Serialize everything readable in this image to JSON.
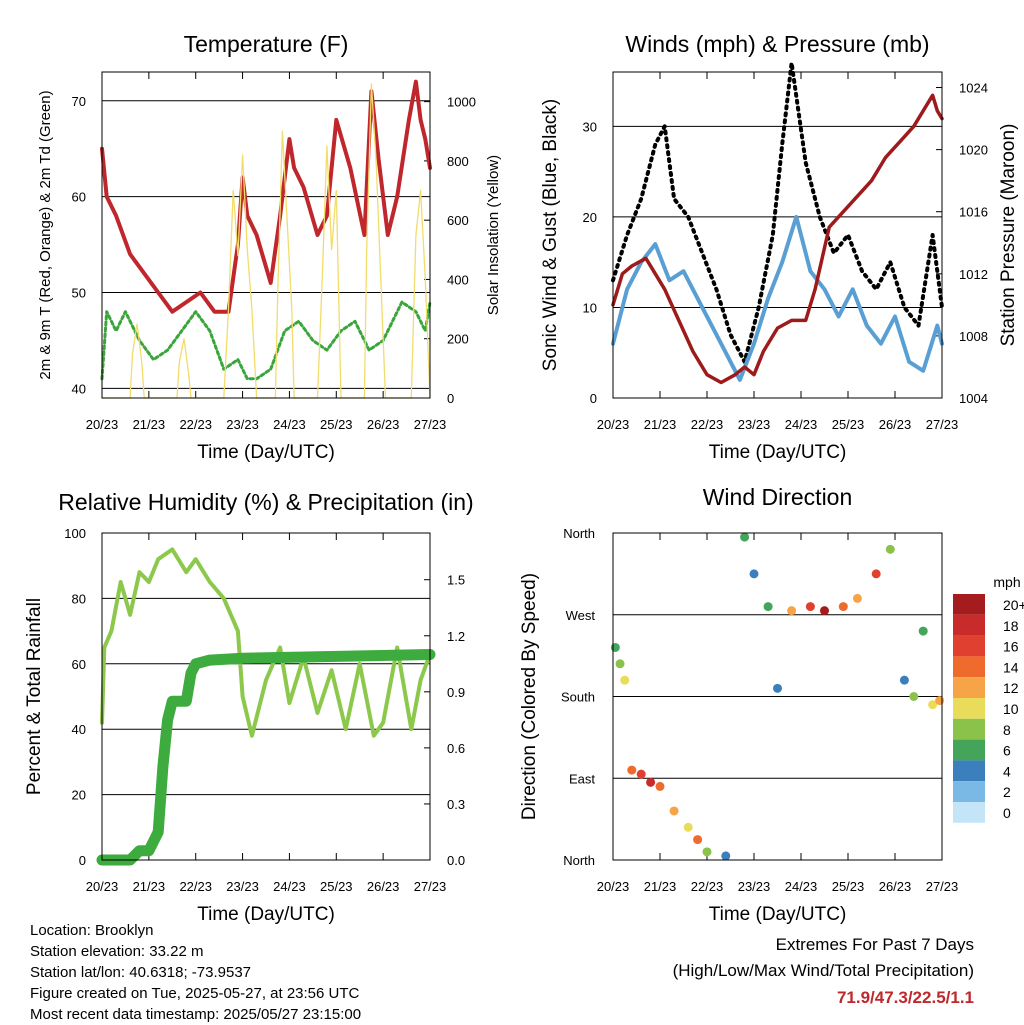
{
  "x_ticks": [
    "20/23",
    "21/23",
    "22/23",
    "23/23",
    "24/23",
    "25/23",
    "26/23",
    "27/23"
  ],
  "xlabel": "Time (Day/UTC)",
  "colors": {
    "temperature": "#c0272d",
    "dewpoint": "#3aa53a",
    "solar": "#f2dc6b",
    "wind": "#5a9fd4",
    "gust": "#000000",
    "pressure": "#9e1b1b",
    "humidity": "#8cc84b",
    "rain": "#3dab3d",
    "grid": "#000000"
  },
  "chart_data": [
    {
      "type": "line",
      "title": "Temperature (F)",
      "ylabel": "2m & 9m T (Red, Orange) & 2m Td (Green)",
      "y2label": "Solar Insolation (Yellow)",
      "ylim": [
        39,
        73
      ],
      "y_ticks": [
        40,
        50,
        60,
        70
      ],
      "y2lim": [
        0,
        1100
      ],
      "y2_ticks": [
        0,
        200,
        400,
        600,
        800,
        1000
      ],
      "grid": true,
      "series": [
        {
          "key": "temperature",
          "axis": "left",
          "x": [
            0,
            0.1,
            0.3,
            0.6,
            0.9,
            1.2,
            1.5,
            1.8,
            2.1,
            2.4,
            2.7,
            2.9,
            3.0,
            3.1,
            3.3,
            3.6,
            3.8,
            4.0,
            4.1,
            4.3,
            4.6,
            4.8,
            5.0,
            5.3,
            5.6,
            5.75,
            5.9,
            6.1,
            6.3,
            6.55,
            6.7,
            6.8,
            6.9,
            7.0
          ],
          "y": [
            65,
            60,
            58,
            54,
            52,
            50,
            48,
            49,
            50,
            48,
            48,
            55,
            62,
            58,
            56,
            51,
            58,
            66,
            63,
            61,
            56,
            58,
            68,
            63,
            56,
            71,
            64,
            56,
            60,
            68,
            72,
            68,
            66,
            63
          ]
        },
        {
          "key": "dewpoint",
          "axis": "left",
          "x": [
            0,
            0.1,
            0.3,
            0.5,
            0.8,
            1.1,
            1.4,
            1.7,
            2.0,
            2.3,
            2.6,
            2.9,
            3.1,
            3.3,
            3.6,
            3.9,
            4.2,
            4.5,
            4.8,
            5.1,
            5.4,
            5.7,
            6.0,
            6.2,
            6.4,
            6.7,
            6.9,
            7.0
          ],
          "y": [
            41,
            48,
            46,
            48,
            45,
            43,
            44,
            46,
            48,
            46,
            42,
            43,
            41,
            41,
            42,
            46,
            47,
            45,
            44,
            46,
            47,
            44,
            45,
            47,
            49,
            48,
            46,
            49
          ]
        },
        {
          "key": "solar",
          "axis": "right",
          "x": [
            0,
            0.6,
            0.65,
            0.75,
            0.85,
            0.9,
            1.6,
            1.65,
            1.75,
            1.85,
            1.9,
            2.6,
            2.7,
            2.8,
            2.9,
            3.0,
            3.1,
            3.2,
            3.3,
            3.7,
            3.75,
            3.85,
            3.95,
            4.05,
            4.1,
            4.6,
            4.7,
            4.8,
            4.9,
            5.0,
            5.1,
            5.6,
            5.65,
            5.75,
            5.85,
            5.95,
            6.05,
            6.6,
            6.7,
            6.8,
            6.9,
            7.0
          ],
          "y": [
            0,
            0,
            150,
            250,
            120,
            0,
            0,
            120,
            200,
            80,
            0,
            0,
            300,
            700,
            480,
            820,
            500,
            300,
            0,
            0,
            350,
            900,
            600,
            300,
            0,
            0,
            400,
            850,
            500,
            700,
            0,
            0,
            500,
            1060,
            800,
            400,
            0,
            0,
            550,
            700,
            400,
            0
          ]
        }
      ]
    },
    {
      "type": "line",
      "title": "Winds (mph) & Pressure (mb)",
      "ylabel": "Sonic Wind & Gust (Blue, Black)",
      "y2label": "Station Pressure (Maroon)",
      "ylim": [
        0,
        36
      ],
      "y_ticks": [
        0,
        10,
        20,
        30
      ],
      "y2lim": [
        1004,
        1025
      ],
      "y2_ticks": [
        1004,
        1008,
        1012,
        1016,
        1020,
        1024
      ],
      "grid": true,
      "series": [
        {
          "key": "gust",
          "axis": "left",
          "x": [
            0,
            0.3,
            0.6,
            0.9,
            1.1,
            1.3,
            1.6,
            1.9,
            2.2,
            2.5,
            2.8,
            3.1,
            3.4,
            3.6,
            3.8,
            4.1,
            4.4,
            4.7,
            5.0,
            5.3,
            5.6,
            5.9,
            6.2,
            6.5,
            6.8,
            7.0
          ],
          "y": [
            13,
            18,
            22,
            28,
            30,
            22,
            20,
            16,
            12,
            7,
            4,
            10,
            18,
            28,
            37,
            26,
            20,
            16,
            18,
            14,
            12,
            15,
            10,
            8,
            18,
            10
          ]
        },
        {
          "key": "wind",
          "axis": "left",
          "x": [
            0,
            0.3,
            0.6,
            0.9,
            1.2,
            1.5,
            1.8,
            2.1,
            2.4,
            2.7,
            3.0,
            3.3,
            3.6,
            3.9,
            4.2,
            4.5,
            4.8,
            5.1,
            5.4,
            5.7,
            6.0,
            6.3,
            6.6,
            6.9,
            7.0
          ],
          "y": [
            6,
            12,
            15,
            17,
            13,
            14,
            11,
            8,
            5,
            2,
            6,
            11,
            15,
            20,
            14,
            12,
            9,
            12,
            8,
            6,
            9,
            4,
            3,
            8,
            6
          ]
        },
        {
          "key": "pressure",
          "axis": "right",
          "x": [
            0,
            0.2,
            0.4,
            0.7,
            0.9,
            1.1,
            1.4,
            1.7,
            2.0,
            2.3,
            2.6,
            2.8,
            3.0,
            3.2,
            3.5,
            3.8,
            4.1,
            4.3,
            4.6,
            4.9,
            5.2,
            5.5,
            5.8,
            6.1,
            6.4,
            6.6,
            6.8,
            6.9,
            7.0
          ],
          "y": [
            1010,
            1012,
            1012.5,
            1013,
            1012,
            1011,
            1009,
            1007,
            1005.5,
            1005,
            1005.5,
            1006,
            1005.5,
            1007,
            1008.5,
            1009,
            1009,
            1011,
            1015,
            1016,
            1017,
            1018,
            1019.5,
            1020.5,
            1021.5,
            1022.5,
            1023.5,
            1022.5,
            1022
          ]
        }
      ]
    },
    {
      "type": "line",
      "title": "Relative Humidity (%) & Precipitation (in)",
      "ylabel": "Percent & Total Rainfall",
      "ylim": [
        0,
        100
      ],
      "y_ticks": [
        0,
        20,
        40,
        60,
        80,
        100
      ],
      "y2lim": [
        0,
        1.75
      ],
      "y2_ticks": [
        0.0,
        0.3,
        0.6,
        0.9,
        1.2,
        1.5
      ],
      "grid": true,
      "series": [
        {
          "key": "humidity",
          "axis": "left",
          "x": [
            0,
            0.05,
            0.2,
            0.4,
            0.6,
            0.8,
            1.0,
            1.2,
            1.5,
            1.8,
            2.0,
            2.3,
            2.6,
            2.9,
            3.0,
            3.2,
            3.5,
            3.8,
            4.0,
            4.3,
            4.6,
            4.9,
            5.2,
            5.5,
            5.8,
            6.0,
            6.3,
            6.6,
            6.8,
            7.0
          ],
          "y": [
            42,
            65,
            70,
            85,
            75,
            88,
            85,
            92,
            95,
            88,
            92,
            85,
            80,
            70,
            50,
            38,
            55,
            65,
            48,
            62,
            45,
            58,
            40,
            60,
            38,
            42,
            65,
            40,
            55,
            63
          ]
        },
        {
          "key": "rain",
          "axis": "right",
          "x": [
            0,
            0.6,
            0.8,
            1.0,
            1.2,
            1.3,
            1.4,
            1.5,
            1.8,
            1.9,
            2.0,
            2.3,
            3.0,
            7.0
          ],
          "y": [
            0,
            0,
            0.05,
            0.05,
            0.15,
            0.5,
            0.75,
            0.85,
            0.85,
            1.0,
            1.05,
            1.07,
            1.08,
            1.1
          ]
        }
      ]
    },
    {
      "type": "scatter",
      "title": "Wind Direction",
      "ylabel": "Direction (Colored By Speed)",
      "y_ticks": [
        "North",
        "East",
        "South",
        "West",
        "North"
      ],
      "grid": true,
      "legend_title": "mph",
      "legend_labels": [
        "20+",
        "18",
        "16",
        "14",
        "12",
        "10",
        "8",
        "6",
        "4",
        "2",
        "0"
      ],
      "legend_colors": [
        "#a51c1f",
        "#c92a2a",
        "#e0402f",
        "#ee6b2d",
        "#f7a446",
        "#e8dc5a",
        "#8bc34a",
        "#44a55a",
        "#3b7fbd",
        "#7ab8e6",
        "#c4e4f8"
      ],
      "points": [
        {
          "x": 0.05,
          "y": 2.6,
          "speed": 6
        },
        {
          "x": 0.15,
          "y": 2.4,
          "speed": 8
        },
        {
          "x": 0.25,
          "y": 2.2,
          "speed": 10
        },
        {
          "x": 0.4,
          "y": 1.1,
          "speed": 14
        },
        {
          "x": 0.6,
          "y": 1.05,
          "speed": 16
        },
        {
          "x": 0.8,
          "y": 0.95,
          "speed": 18
        },
        {
          "x": 1.0,
          "y": 0.9,
          "speed": 14
        },
        {
          "x": 1.3,
          "y": 0.6,
          "speed": 12
        },
        {
          "x": 1.6,
          "y": 0.4,
          "speed": 10
        },
        {
          "x": 1.8,
          "y": 0.25,
          "speed": 14
        },
        {
          "x": 2.0,
          "y": 0.1,
          "speed": 8
        },
        {
          "x": 2.4,
          "y": 0.05,
          "speed": 4
        },
        {
          "x": 2.8,
          "y": 3.95,
          "speed": 6
        },
        {
          "x": 3.0,
          "y": 3.5,
          "speed": 4
        },
        {
          "x": 3.3,
          "y": 3.1,
          "speed": 6
        },
        {
          "x": 3.5,
          "y": 2.1,
          "speed": 4
        },
        {
          "x": 3.8,
          "y": 3.05,
          "speed": 12
        },
        {
          "x": 4.2,
          "y": 3.1,
          "speed": 16
        },
        {
          "x": 4.5,
          "y": 3.05,
          "speed": 20
        },
        {
          "x": 4.9,
          "y": 3.1,
          "speed": 14
        },
        {
          "x": 5.2,
          "y": 3.2,
          "speed": 12
        },
        {
          "x": 5.6,
          "y": 3.5,
          "speed": 16
        },
        {
          "x": 5.9,
          "y": 3.8,
          "speed": 8
        },
        {
          "x": 6.2,
          "y": 2.2,
          "speed": 4
        },
        {
          "x": 6.4,
          "y": 2.0,
          "speed": 8
        },
        {
          "x": 6.6,
          "y": 2.8,
          "speed": 6
        },
        {
          "x": 6.8,
          "y": 1.9,
          "speed": 10
        },
        {
          "x": 6.95,
          "y": 1.95,
          "speed": 12
        }
      ]
    }
  ],
  "info": {
    "location": "Location: Brooklyn",
    "elevation": "Station elevation: 33.22 m",
    "latlon": "Station lat/lon: 40.6318; -73.9537",
    "created": "Figure created on Tue, 2025-05-27, at 23:56 UTC",
    "recent": "Most recent data timestamp: 2025/05/27 23:15:00"
  },
  "extremes": {
    "title": "Extremes For Past 7 Days",
    "subtitle": "(High/Low/Max Wind/Total Precipitation)",
    "values": "71.9/47.3/22.5/1.1"
  }
}
